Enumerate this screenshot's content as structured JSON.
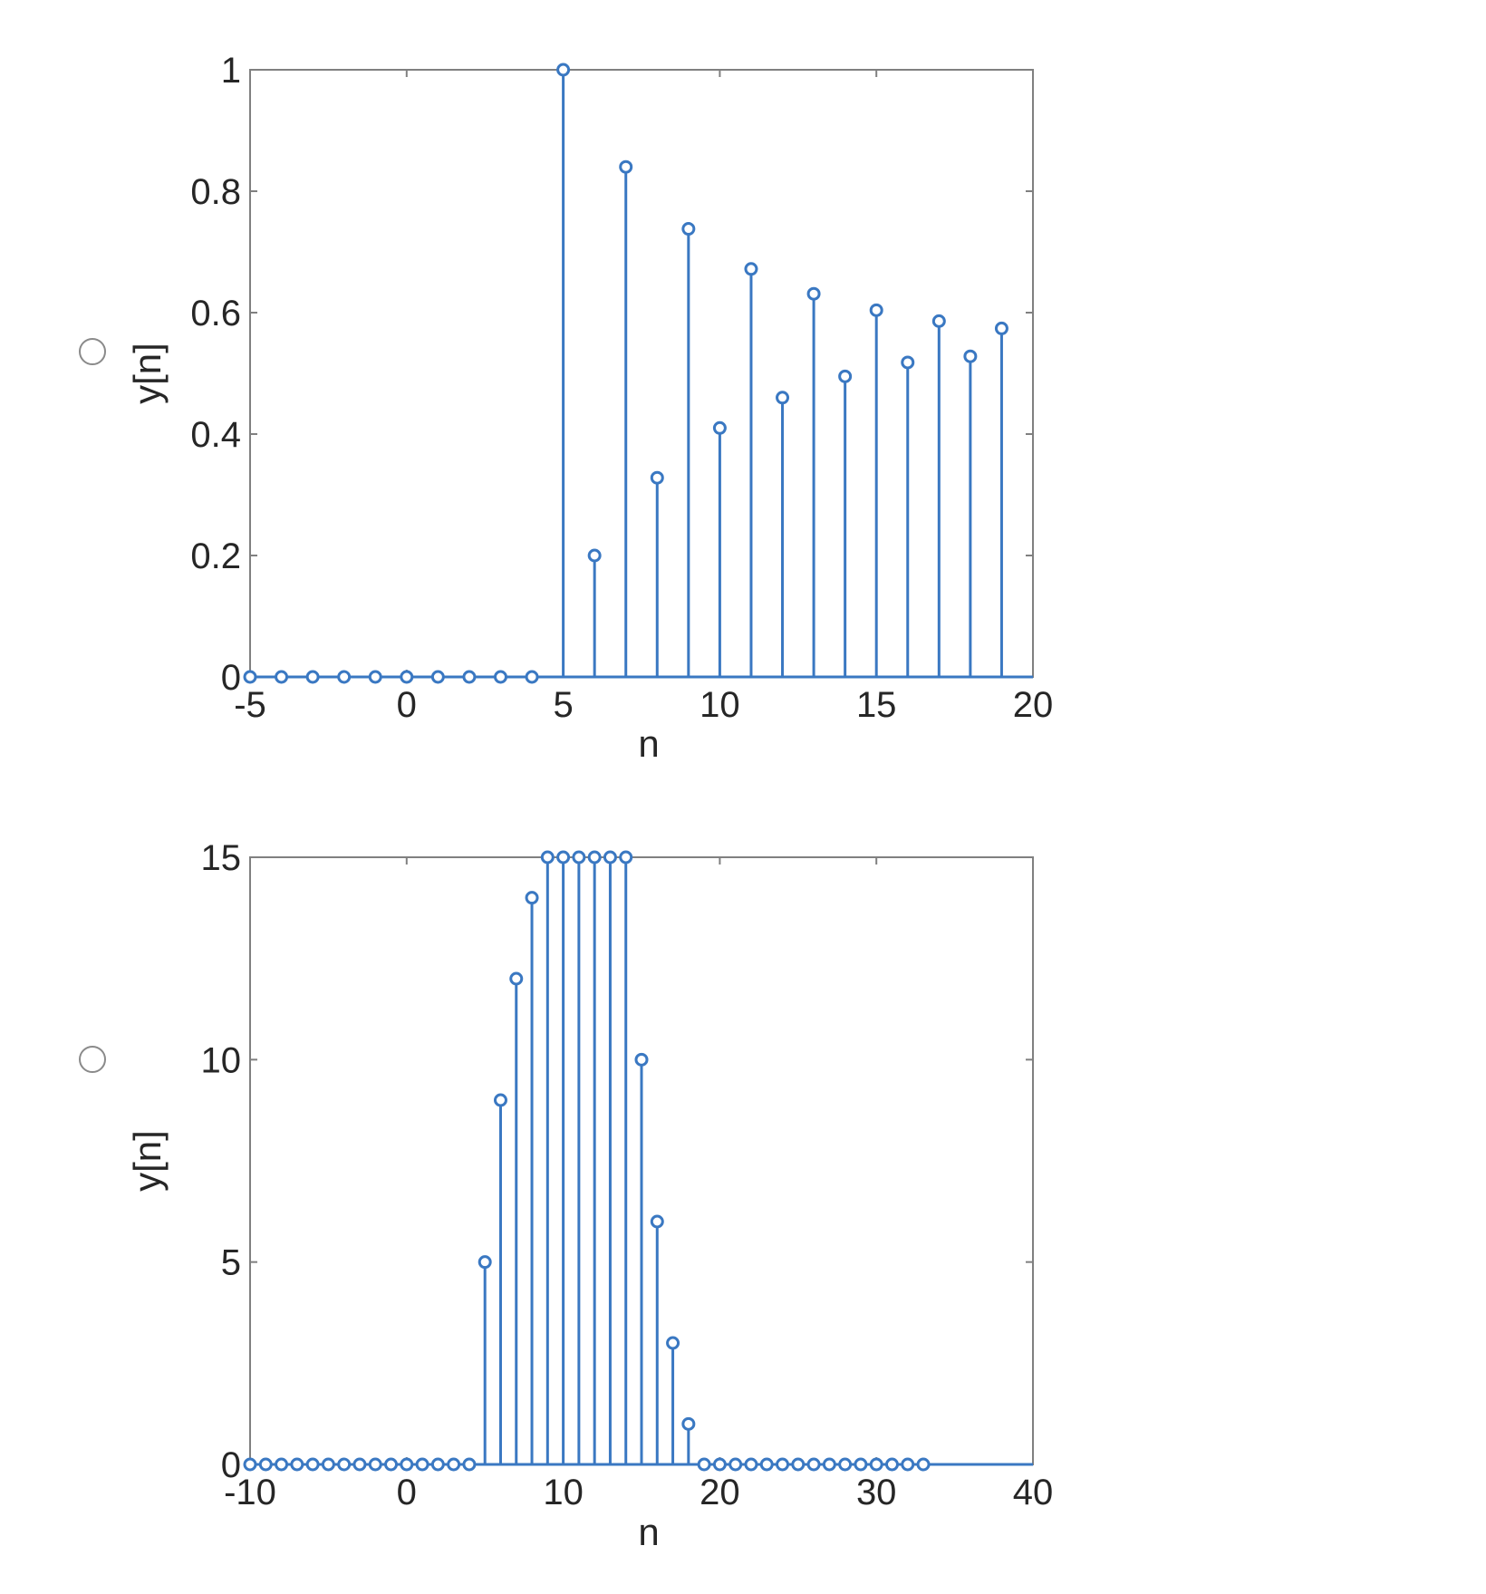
{
  "options": [
    {
      "chart_data": {
        "type": "stem",
        "xlabel": "n",
        "ylabel": "y[n]",
        "xlim": [
          -5,
          20
        ],
        "ylim": [
          0,
          1
        ],
        "xticks": [
          -5,
          0,
          5,
          10,
          15,
          20
        ],
        "xtick_labels": [
          "-5",
          "0",
          "5",
          "10",
          "15",
          "20"
        ],
        "yticks": [
          0,
          0.2,
          0.4,
          0.6,
          0.8,
          1
        ],
        "ytick_labels": [
          "0",
          "0.2",
          "0.4",
          "0.6",
          "0.8",
          "1"
        ],
        "grid": false,
        "color": "#3a78c2",
        "x": [
          -5,
          -4,
          -3,
          -2,
          -1,
          0,
          1,
          2,
          3,
          4,
          5,
          6,
          7,
          8,
          9,
          10,
          11,
          12,
          13,
          14,
          15,
          16,
          17,
          18,
          19
        ],
        "y": [
          0,
          0,
          0,
          0,
          0,
          0,
          0,
          0,
          0,
          0,
          1,
          0.2,
          0.84,
          0.328,
          0.738,
          0.41,
          0.672,
          0.46,
          0.631,
          0.495,
          0.604,
          0.518,
          0.586,
          0.528,
          0.574
        ]
      }
    },
    {
      "chart_data": {
        "type": "stem",
        "xlabel": "n",
        "ylabel": "y[n]",
        "xlim": [
          -10,
          40
        ],
        "ylim": [
          0,
          15
        ],
        "xticks": [
          -10,
          0,
          10,
          20,
          30,
          40
        ],
        "xtick_labels": [
          "-10",
          "0",
          "10",
          "20",
          "30",
          "40"
        ],
        "yticks": [
          0,
          5,
          10,
          15
        ],
        "ytick_labels": [
          "0",
          "5",
          "10",
          "15"
        ],
        "grid": false,
        "color": "#3a78c2",
        "x": [
          -10,
          -9,
          -8,
          -7,
          -6,
          -5,
          -4,
          -3,
          -2,
          -1,
          0,
          1,
          2,
          3,
          4,
          5,
          6,
          7,
          8,
          9,
          10,
          11,
          12,
          13,
          14,
          15,
          16,
          17,
          18,
          19,
          20,
          21,
          22,
          23,
          24,
          25,
          26,
          27,
          28,
          29,
          30,
          31,
          32,
          33
        ],
        "y": [
          0,
          0,
          0,
          0,
          0,
          0,
          0,
          0,
          0,
          0,
          0,
          0,
          0,
          0,
          0,
          5,
          9,
          12,
          14,
          15,
          15,
          15,
          15,
          15,
          15,
          10,
          6,
          3,
          1,
          0,
          0,
          0,
          0,
          0,
          0,
          0,
          0,
          0,
          0,
          0,
          0,
          0,
          0,
          0
        ]
      }
    }
  ]
}
